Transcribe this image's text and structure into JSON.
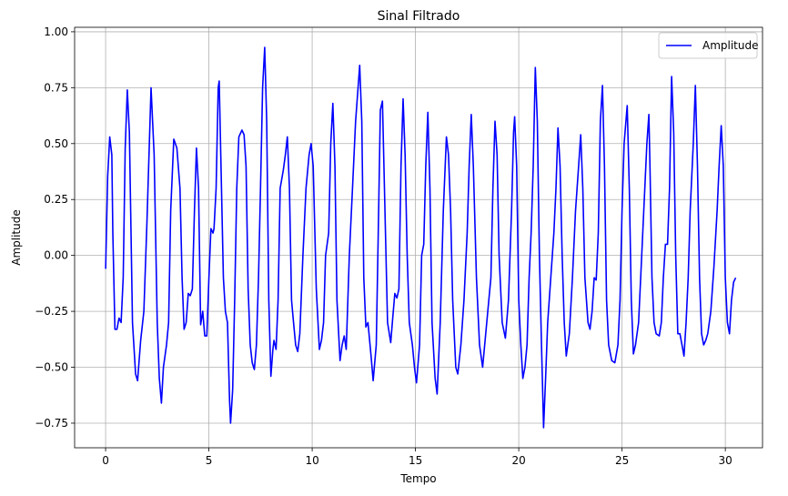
{
  "chart_data": {
    "type": "line",
    "title": "Sinal Filtrado",
    "xlabel": "Tempo",
    "ylabel": "Amplitude",
    "xlim": [
      -1.5,
      31.8
    ],
    "ylim": [
      -0.86,
      1.02
    ],
    "xticks": [
      0,
      5,
      10,
      15,
      20,
      25,
      30
    ],
    "yticks": [
      -0.75,
      -0.5,
      -0.25,
      0.0,
      0.25,
      0.5,
      0.75,
      1.0
    ],
    "ytick_labels": [
      "−0.75",
      "−0.50",
      "−0.25",
      "0.00",
      "0.25",
      "0.50",
      "0.75",
      "1.00"
    ],
    "grid": true,
    "legend_position": "upper-right",
    "series": [
      {
        "name": "Amplitude",
        "color": "#0000ff",
        "points": [
          [
            0.0,
            -0.06
          ],
          [
            0.1,
            0.35
          ],
          [
            0.2,
            0.53
          ],
          [
            0.3,
            0.45
          ],
          [
            0.35,
            0.1
          ],
          [
            0.45,
            -0.33
          ],
          [
            0.55,
            -0.33
          ],
          [
            0.65,
            -0.28
          ],
          [
            0.75,
            -0.3
          ],
          [
            0.85,
            -0.1
          ],
          [
            0.95,
            0.48
          ],
          [
            1.05,
            0.74
          ],
          [
            1.15,
            0.55
          ],
          [
            1.3,
            -0.3
          ],
          [
            1.45,
            -0.53
          ],
          [
            1.55,
            -0.56
          ],
          [
            1.7,
            -0.38
          ],
          [
            1.85,
            -0.25
          ],
          [
            2.0,
            0.15
          ],
          [
            2.2,
            0.75
          ],
          [
            2.35,
            0.45
          ],
          [
            2.5,
            -0.3
          ],
          [
            2.6,
            -0.55
          ],
          [
            2.7,
            -0.66
          ],
          [
            2.8,
            -0.5
          ],
          [
            2.95,
            -0.4
          ],
          [
            3.05,
            -0.3
          ],
          [
            3.15,
            0.2
          ],
          [
            3.3,
            0.52
          ],
          [
            3.45,
            0.48
          ],
          [
            3.6,
            0.3
          ],
          [
            3.7,
            -0.1
          ],
          [
            3.8,
            -0.33
          ],
          [
            3.9,
            -0.3
          ],
          [
            4.0,
            -0.17
          ],
          [
            4.1,
            -0.18
          ],
          [
            4.2,
            -0.15
          ],
          [
            4.3,
            0.2
          ],
          [
            4.4,
            0.48
          ],
          [
            4.5,
            0.3
          ],
          [
            4.6,
            -0.31
          ],
          [
            4.7,
            -0.25
          ],
          [
            4.8,
            -0.36
          ],
          [
            4.9,
            -0.36
          ],
          [
            5.0,
            -0.1
          ],
          [
            5.1,
            0.12
          ],
          [
            5.2,
            0.1
          ],
          [
            5.25,
            0.12
          ],
          [
            5.35,
            0.3
          ],
          [
            5.45,
            0.75
          ],
          [
            5.5,
            0.78
          ],
          [
            5.55,
            0.55
          ],
          [
            5.7,
            -0.1
          ],
          [
            5.8,
            -0.25
          ],
          [
            5.9,
            -0.3
          ],
          [
            6.0,
            -0.65
          ],
          [
            6.05,
            -0.75
          ],
          [
            6.15,
            -0.6
          ],
          [
            6.25,
            -0.2
          ],
          [
            6.35,
            0.3
          ],
          [
            6.45,
            0.53
          ],
          [
            6.6,
            0.56
          ],
          [
            6.7,
            0.54
          ],
          [
            6.8,
            0.4
          ],
          [
            6.9,
            -0.15
          ],
          [
            7.0,
            -0.4
          ],
          [
            7.1,
            -0.48
          ],
          [
            7.2,
            -0.51
          ],
          [
            7.3,
            -0.4
          ],
          [
            7.4,
            -0.1
          ],
          [
            7.5,
            0.3
          ],
          [
            7.6,
            0.75
          ],
          [
            7.7,
            0.93
          ],
          [
            7.8,
            0.6
          ],
          [
            7.9,
            -0.2
          ],
          [
            8.0,
            -0.54
          ],
          [
            8.1,
            -0.42
          ],
          [
            8.15,
            -0.38
          ],
          [
            8.25,
            -0.42
          ],
          [
            8.35,
            -0.2
          ],
          [
            8.45,
            0.3
          ],
          [
            8.6,
            0.38
          ],
          [
            8.7,
            0.45
          ],
          [
            8.8,
            0.53
          ],
          [
            8.9,
            0.3
          ],
          [
            9.0,
            -0.2
          ],
          [
            9.1,
            -0.3
          ],
          [
            9.2,
            -0.4
          ],
          [
            9.3,
            -0.43
          ],
          [
            9.4,
            -0.35
          ],
          [
            9.55,
            0.0
          ],
          [
            9.7,
            0.3
          ],
          [
            9.85,
            0.45
          ],
          [
            9.95,
            0.5
          ],
          [
            10.05,
            0.4
          ],
          [
            10.2,
            -0.15
          ],
          [
            10.35,
            -0.42
          ],
          [
            10.45,
            -0.38
          ],
          [
            10.55,
            -0.3
          ],
          [
            10.65,
            0.0
          ],
          [
            10.8,
            0.1
          ],
          [
            10.9,
            0.5
          ],
          [
            11.0,
            0.68
          ],
          [
            11.1,
            0.4
          ],
          [
            11.2,
            -0.2
          ],
          [
            11.35,
            -0.47
          ],
          [
            11.45,
            -0.4
          ],
          [
            11.55,
            -0.36
          ],
          [
            11.65,
            -0.42
          ],
          [
            11.8,
            0.0
          ],
          [
            11.95,
            0.3
          ],
          [
            12.1,
            0.6
          ],
          [
            12.3,
            0.85
          ],
          [
            12.4,
            0.6
          ],
          [
            12.5,
            -0.1
          ],
          [
            12.6,
            -0.32
          ],
          [
            12.7,
            -0.3
          ],
          [
            12.85,
            -0.45
          ],
          [
            12.95,
            -0.56
          ],
          [
            13.1,
            -0.4
          ],
          [
            13.2,
            0.1
          ],
          [
            13.3,
            0.65
          ],
          [
            13.4,
            0.69
          ],
          [
            13.5,
            0.3
          ],
          [
            13.65,
            -0.3
          ],
          [
            13.8,
            -0.39
          ],
          [
            13.9,
            -0.28
          ],
          [
            14.0,
            -0.17
          ],
          [
            14.1,
            -0.19
          ],
          [
            14.2,
            -0.15
          ],
          [
            14.3,
            0.4
          ],
          [
            14.4,
            0.7
          ],
          [
            14.5,
            0.45
          ],
          [
            14.6,
            0.0
          ],
          [
            14.7,
            -0.3
          ],
          [
            14.85,
            -0.4
          ],
          [
            14.95,
            -0.5
          ],
          [
            15.05,
            -0.57
          ],
          [
            15.2,
            -0.4
          ],
          [
            15.3,
            0.0
          ],
          [
            15.4,
            0.05
          ],
          [
            15.5,
            0.4
          ],
          [
            15.6,
            0.64
          ],
          [
            15.7,
            0.3
          ],
          [
            15.8,
            -0.3
          ],
          [
            15.95,
            -0.55
          ],
          [
            16.05,
            -0.62
          ],
          [
            16.2,
            -0.3
          ],
          [
            16.35,
            0.2
          ],
          [
            16.5,
            0.53
          ],
          [
            16.6,
            0.45
          ],
          [
            16.7,
            0.2
          ],
          [
            16.8,
            -0.2
          ],
          [
            16.95,
            -0.5
          ],
          [
            17.05,
            -0.53
          ],
          [
            17.2,
            -0.4
          ],
          [
            17.35,
            -0.2
          ],
          [
            17.5,
            0.1
          ],
          [
            17.6,
            0.4
          ],
          [
            17.7,
            0.63
          ],
          [
            17.8,
            0.4
          ],
          [
            17.95,
            -0.1
          ],
          [
            18.1,
            -0.4
          ],
          [
            18.25,
            -0.5
          ],
          [
            18.4,
            -0.35
          ],
          [
            18.55,
            -0.2
          ],
          [
            18.65,
            -0.1
          ],
          [
            18.75,
            0.3
          ],
          [
            18.85,
            0.6
          ],
          [
            18.95,
            0.45
          ],
          [
            19.05,
            0.0
          ],
          [
            19.2,
            -0.3
          ],
          [
            19.35,
            -0.37
          ],
          [
            19.5,
            -0.2
          ],
          [
            19.65,
            0.2
          ],
          [
            19.75,
            0.55
          ],
          [
            19.8,
            0.62
          ],
          [
            19.9,
            0.4
          ],
          [
            20.0,
            -0.2
          ],
          [
            20.1,
            -0.4
          ],
          [
            20.2,
            -0.55
          ],
          [
            20.3,
            -0.5
          ],
          [
            20.4,
            -0.4
          ],
          [
            20.5,
            -0.1
          ],
          [
            20.6,
            0.1
          ],
          [
            20.7,
            0.4
          ],
          [
            20.8,
            0.84
          ],
          [
            20.9,
            0.6
          ],
          [
            21.0,
            0.0
          ],
          [
            21.1,
            -0.4
          ],
          [
            21.2,
            -0.77
          ],
          [
            21.3,
            -0.55
          ],
          [
            21.4,
            -0.3
          ],
          [
            21.55,
            -0.1
          ],
          [
            21.7,
            0.1
          ],
          [
            21.8,
            0.3
          ],
          [
            21.9,
            0.57
          ],
          [
            22.0,
            0.4
          ],
          [
            22.1,
            0.0
          ],
          [
            22.2,
            -0.3
          ],
          [
            22.3,
            -0.45
          ],
          [
            22.45,
            -0.35
          ],
          [
            22.6,
            -0.1
          ],
          [
            22.75,
            0.2
          ],
          [
            22.9,
            0.4
          ],
          [
            23.0,
            0.54
          ],
          [
            23.1,
            0.3
          ],
          [
            23.2,
            -0.1
          ],
          [
            23.35,
            -0.3
          ],
          [
            23.45,
            -0.33
          ],
          [
            23.55,
            -0.25
          ],
          [
            23.65,
            -0.1
          ],
          [
            23.75,
            -0.11
          ],
          [
            23.85,
            0.1
          ],
          [
            23.95,
            0.6
          ],
          [
            24.05,
            0.76
          ],
          [
            24.15,
            0.4
          ],
          [
            24.25,
            -0.2
          ],
          [
            24.35,
            -0.4
          ],
          [
            24.5,
            -0.47
          ],
          [
            24.65,
            -0.48
          ],
          [
            24.8,
            -0.4
          ],
          [
            24.9,
            -0.2
          ],
          [
            25.0,
            0.2
          ],
          [
            25.1,
            0.5
          ],
          [
            25.25,
            0.67
          ],
          [
            25.35,
            0.3
          ],
          [
            25.45,
            -0.2
          ],
          [
            25.55,
            -0.44
          ],
          [
            25.65,
            -0.4
          ],
          [
            25.8,
            -0.3
          ],
          [
            25.9,
            -0.1
          ],
          [
            26.05,
            0.2
          ],
          [
            26.2,
            0.5
          ],
          [
            26.3,
            0.63
          ],
          [
            26.35,
            0.4
          ],
          [
            26.45,
            -0.1
          ],
          [
            26.55,
            -0.3
          ],
          [
            26.65,
            -0.35
          ],
          [
            26.8,
            -0.36
          ],
          [
            26.9,
            -0.3
          ],
          [
            27.0,
            -0.1
          ],
          [
            27.1,
            0.05
          ],
          [
            27.2,
            0.05
          ],
          [
            27.3,
            0.3
          ],
          [
            27.4,
            0.8
          ],
          [
            27.5,
            0.55
          ],
          [
            27.6,
            0.0
          ],
          [
            27.7,
            -0.35
          ],
          [
            27.8,
            -0.35
          ],
          [
            27.9,
            -0.4
          ],
          [
            28.0,
            -0.45
          ],
          [
            28.1,
            -0.3
          ],
          [
            28.2,
            -0.1
          ],
          [
            28.3,
            0.2
          ],
          [
            28.45,
            0.5
          ],
          [
            28.55,
            0.76
          ],
          [
            28.65,
            0.4
          ],
          [
            28.75,
            -0.1
          ],
          [
            28.85,
            -0.35
          ],
          [
            28.95,
            -0.4
          ],
          [
            29.05,
            -0.38
          ],
          [
            29.15,
            -0.35
          ],
          [
            29.3,
            -0.25
          ],
          [
            29.45,
            -0.05
          ],
          [
            29.6,
            0.2
          ],
          [
            29.7,
            0.4
          ],
          [
            29.8,
            0.58
          ],
          [
            29.9,
            0.4
          ],
          [
            30.0,
            -0.1
          ],
          [
            30.1,
            -0.3
          ],
          [
            30.2,
            -0.35
          ],
          [
            30.3,
            -0.2
          ],
          [
            30.4,
            -0.12
          ],
          [
            30.5,
            -0.1
          ]
        ]
      }
    ]
  }
}
